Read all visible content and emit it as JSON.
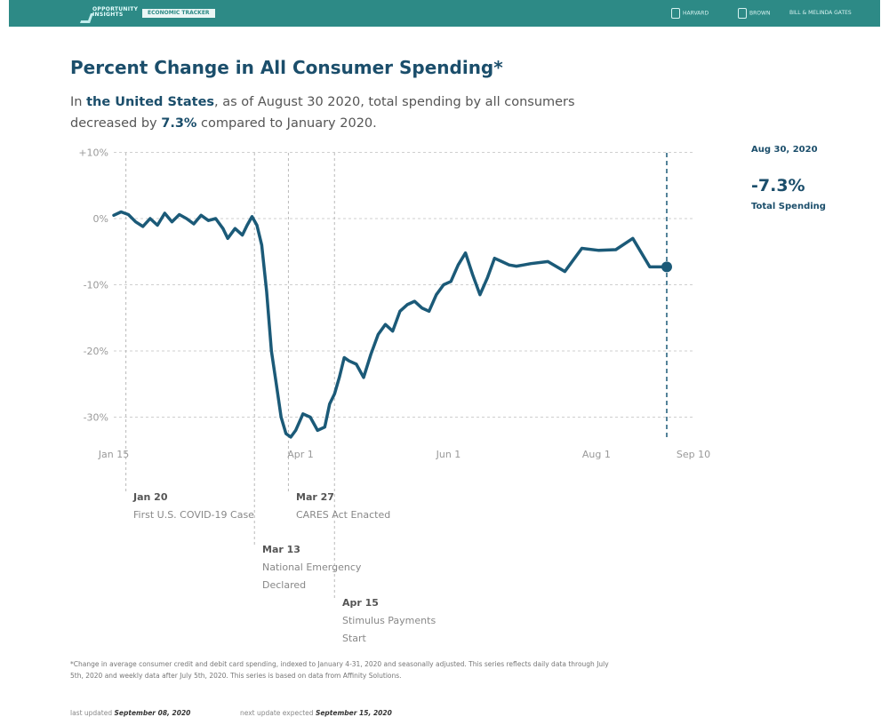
{
  "header": {
    "logo_text": "OPPORTUNITY INSIGHTS",
    "logo_tag": "ECONOMIC TRACKER",
    "partners": [
      "HARVARD",
      "BROWN",
      "BILL & MELINDA GATES"
    ]
  },
  "title": "Percent Change in All Consumer Spending*",
  "subtitle": {
    "prefix": "In ",
    "region": "the United States",
    "mid": ", as of August 30 2020, total spending by all consumers decreased by ",
    "value": "7.3%",
    "suffix": " compared to January 2020."
  },
  "callout": {
    "date": "Aug 30, 2020",
    "value": "-7.3%",
    "label": "Total Spending"
  },
  "events": [
    {
      "date": "Jan 20",
      "label": "First U.S. COVID-19 Case"
    },
    {
      "date": "Mar 13",
      "label": "National Emergency Declared"
    },
    {
      "date": "Mar 27",
      "label": "CARES Act Enacted"
    },
    {
      "date": "Apr 15",
      "label": "Stimulus Payments Start"
    }
  ],
  "footnote": "*Change in average consumer credit and debit card spending, indexed to January 4-31, 2020 and seasonally adjusted. This series reflects daily data through July 5th, 2020 and weekly data after July 5th, 2020. This series is based on data from Affinity Solutions.",
  "updated": {
    "last_label": "last updated",
    "last_date": "September 08, 2020",
    "next_label": "next update expected",
    "next_date": "September 15, 2020"
  },
  "colors": {
    "header": "#2d8a86",
    "line": "#1b5a78",
    "title": "#1b4e6b"
  },
  "chart_data": {
    "type": "line",
    "title": "Percent Change in All Consumer Spending*",
    "xlabel": "",
    "ylabel": "",
    "x_ticks": [
      "Jan 15",
      "Apr 1",
      "Jun 1",
      "Aug 1",
      "Sep 10"
    ],
    "y_ticks": [
      "+10%",
      "0%",
      "-10%",
      "-20%",
      "-30%"
    ],
    "ylim": [
      -33,
      10
    ],
    "xlim": [
      "2020-01-15",
      "2020-09-10"
    ],
    "grid": true,
    "event_lines": [
      "2020-01-20",
      "2020-03-13",
      "2020-03-27",
      "2020-04-15",
      "2020-08-30"
    ],
    "series": [
      {
        "name": "Total Spending",
        "x": [
          "2020-01-15",
          "2020-01-18",
          "2020-01-21",
          "2020-01-24",
          "2020-01-27",
          "2020-01-30",
          "2020-02-02",
          "2020-02-05",
          "2020-02-08",
          "2020-02-11",
          "2020-02-14",
          "2020-02-17",
          "2020-02-20",
          "2020-02-23",
          "2020-02-26",
          "2020-02-29",
          "2020-03-02",
          "2020-03-05",
          "2020-03-08",
          "2020-03-10",
          "2020-03-12",
          "2020-03-14",
          "2020-03-16",
          "2020-03-18",
          "2020-03-20",
          "2020-03-22",
          "2020-03-24",
          "2020-03-26",
          "2020-03-28",
          "2020-03-30",
          "2020-04-02",
          "2020-04-05",
          "2020-04-08",
          "2020-04-11",
          "2020-04-13",
          "2020-04-15",
          "2020-04-17",
          "2020-04-19",
          "2020-04-21",
          "2020-04-24",
          "2020-04-27",
          "2020-04-30",
          "2020-05-03",
          "2020-05-06",
          "2020-05-09",
          "2020-05-12",
          "2020-05-15",
          "2020-05-18",
          "2020-05-21",
          "2020-05-24",
          "2020-05-27",
          "2020-05-30",
          "2020-06-02",
          "2020-06-05",
          "2020-06-08",
          "2020-06-11",
          "2020-06-14",
          "2020-06-17",
          "2020-06-20",
          "2020-06-23",
          "2020-06-26",
          "2020-06-29",
          "2020-07-02",
          "2020-07-05",
          "2020-07-12",
          "2020-07-19",
          "2020-07-26",
          "2020-08-02",
          "2020-08-09",
          "2020-08-16",
          "2020-08-23",
          "2020-08-30"
        ],
        "values": [
          0.5,
          1.0,
          0.6,
          -0.5,
          -1.2,
          0.0,
          -1.0,
          0.8,
          -0.5,
          0.6,
          0.0,
          -0.8,
          0.5,
          -0.3,
          0.0,
          -1.5,
          -3.0,
          -1.5,
          -2.5,
          -1.0,
          0.3,
          -1.0,
          -4.0,
          -11.0,
          -20.0,
          -25.0,
          -30.0,
          -32.5,
          -33.0,
          -32.0,
          -29.5,
          -30.0,
          -32.0,
          -31.5,
          -28.0,
          -26.5,
          -24.0,
          -21.0,
          -21.5,
          -22.0,
          -24.0,
          -20.5,
          -17.5,
          -16.0,
          -17.0,
          -14.0,
          -13.0,
          -12.5,
          -13.5,
          -14.0,
          -11.5,
          -10.0,
          -9.5,
          -7.0,
          -5.2,
          -8.5,
          -11.5,
          -9.0,
          -6.0,
          -6.5,
          -7.0,
          -7.2,
          -7.0,
          -6.8,
          -6.5,
          -8.0,
          -4.5,
          -4.8,
          -4.7,
          -3.0,
          -7.3,
          -7.3
        ]
      }
    ]
  }
}
